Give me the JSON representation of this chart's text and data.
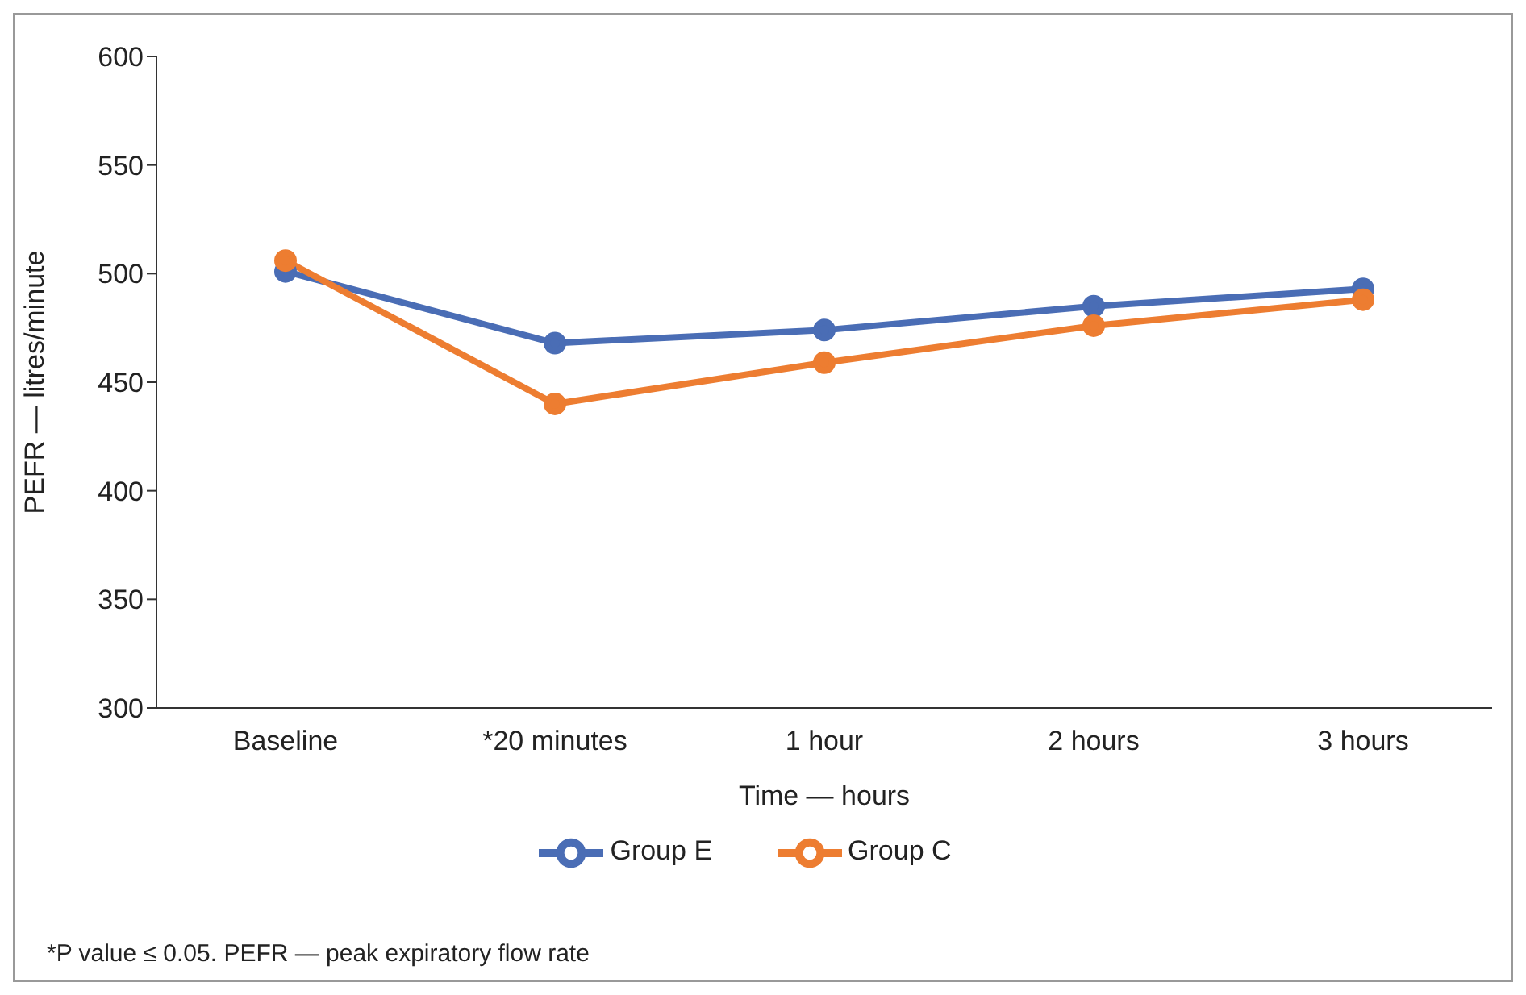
{
  "chart_data": {
    "type": "line",
    "xlabel": "Time — hours",
    "ylabel": "PEFR — litres/minute",
    "categories": [
      "Baseline",
      "*20 minutes",
      "1 hour",
      "2 hours",
      "3 hours"
    ],
    "series": [
      {
        "name": "Group E",
        "color": "#4a6db5",
        "values": [
          501,
          468,
          474,
          485,
          493
        ]
      },
      {
        "name": "Group C",
        "color": "#ed7d31",
        "values": [
          506,
          440,
          459,
          476,
          488
        ]
      }
    ],
    "ylim": [
      300,
      600
    ],
    "yticks": [
      300,
      350,
      400,
      450,
      500,
      550,
      600
    ],
    "grid": false,
    "legend": "bottom",
    "marker": "circle",
    "line_style": "solid",
    "annotations": [
      "*P value ≤ 0.05. PEFR — peak expiratory flow rate"
    ]
  }
}
